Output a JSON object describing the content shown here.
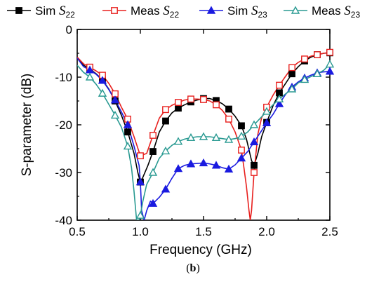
{
  "caption": {
    "open": "(",
    "letter": "b",
    "close": ")"
  },
  "chart_data": {
    "type": "line",
    "title": "",
    "xlabel": "Frequency (GHz)",
    "ylabel": "S-parameter (dB)",
    "xlim": [
      0.5,
      2.5
    ],
    "ylim": [
      -40,
      0
    ],
    "xticks": [
      "0.5",
      "1.0",
      "1.5",
      "2.0",
      "2.5"
    ],
    "yticks": [
      "0",
      "-10",
      "-20",
      "-30",
      "-40"
    ],
    "grid": false,
    "legend_position": "top",
    "series": [
      {
        "name": "Sim S22",
        "label": "Sim",
        "symbol": "S",
        "subscript": "22",
        "color": "#000000",
        "marker": "square-filled",
        "x": [
          0.5,
          0.55,
          0.6,
          0.65,
          0.7,
          0.75,
          0.8,
          0.85,
          0.9,
          0.95,
          0.98,
          1.0,
          1.02,
          1.06,
          1.1,
          1.15,
          1.2,
          1.25,
          1.3,
          1.35,
          1.4,
          1.45,
          1.5,
          1.55,
          1.6,
          1.65,
          1.7,
          1.75,
          1.8,
          1.84,
          1.88,
          1.9,
          1.93,
          1.96,
          2.0,
          2.05,
          2.1,
          2.15,
          2.2,
          2.25,
          2.3,
          2.35,
          2.4,
          2.45,
          2.5
        ],
        "y": [
          -6,
          -7.5,
          -8.3,
          -9.3,
          -10.6,
          -12.5,
          -15,
          -18,
          -21.5,
          -26,
          -30,
          -32,
          -31,
          -28.5,
          -25.6,
          -21.5,
          -19.2,
          -17.5,
          -16.5,
          -15.8,
          -15.2,
          -14.8,
          -14.5,
          -14.5,
          -14.9,
          -15.6,
          -16.7,
          -18.2,
          -20.2,
          -23,
          -27.5,
          -28.5,
          -26,
          -22.5,
          -19.5,
          -16,
          -13.3,
          -11.3,
          -9.3,
          -7.8,
          -6.6,
          -5.8,
          -5.3,
          -5.0,
          -4.9
        ],
        "marker_x": [
          0.6,
          0.7,
          0.8,
          0.9,
          1.0,
          1.1,
          1.2,
          1.3,
          1.4,
          1.5,
          1.6,
          1.7,
          1.8,
          1.9,
          2.0,
          2.1,
          2.2,
          2.3,
          2.4,
          2.5
        ]
      },
      {
        "name": "Meas S22",
        "label": "Meas",
        "symbol": "S",
        "subscript": "22",
        "color": "#e8201e",
        "marker": "square-open",
        "x": [
          0.5,
          0.55,
          0.6,
          0.65,
          0.7,
          0.75,
          0.8,
          0.85,
          0.9,
          0.95,
          1.0,
          1.05,
          1.1,
          1.15,
          1.2,
          1.25,
          1.3,
          1.35,
          1.4,
          1.45,
          1.5,
          1.55,
          1.6,
          1.65,
          1.7,
          1.75,
          1.8,
          1.82,
          1.84,
          1.86,
          1.87,
          1.88,
          1.9,
          1.93,
          1.96,
          2.0,
          2.05,
          2.1,
          2.15,
          2.2,
          2.25,
          2.3,
          2.35,
          2.4,
          2.45,
          2.5
        ],
        "y": [
          -5.8,
          -7.2,
          -7.9,
          -8.7,
          -9.6,
          -11.3,
          -13.5,
          -16.3,
          -18.8,
          -22.5,
          -26.5,
          -26,
          -22.2,
          -18.6,
          -16.8,
          -15.9,
          -15.3,
          -14.8,
          -14.6,
          -14.6,
          -14.7,
          -15.0,
          -15.8,
          -17.0,
          -18.8,
          -21.5,
          -25.3,
          -29,
          -33,
          -38,
          -40,
          -38,
          -30,
          -22,
          -18.5,
          -16.3,
          -13.8,
          -11.7,
          -9.8,
          -8.0,
          -6.9,
          -6.2,
          -5.6,
          -5.3,
          -5.0,
          -4.8
        ],
        "marker_x": [
          0.6,
          0.7,
          0.8,
          0.9,
          1.0,
          1.1,
          1.2,
          1.3,
          1.4,
          1.5,
          1.6,
          1.7,
          1.8,
          1.9,
          2.0,
          2.1,
          2.2,
          2.3,
          2.4,
          2.5
        ]
      },
      {
        "name": "Sim S23",
        "label": "Sim",
        "symbol": "S",
        "subscript": "23",
        "color": "#1a1ae0",
        "marker": "triangle-filled",
        "x": [
          0.5,
          0.55,
          0.6,
          0.65,
          0.7,
          0.75,
          0.8,
          0.85,
          0.9,
          0.95,
          0.99,
          1.0,
          1.01,
          1.03,
          1.05,
          1.08,
          1.1,
          1.15,
          1.2,
          1.25,
          1.3,
          1.35,
          1.4,
          1.45,
          1.5,
          1.55,
          1.6,
          1.65,
          1.7,
          1.75,
          1.8,
          1.85,
          1.9,
          1.95,
          2.0,
          2.05,
          2.1,
          2.15,
          2.2,
          2.25,
          2.3,
          2.35,
          2.4,
          2.45,
          2.5
        ],
        "y": [
          -6,
          -7.8,
          -8.5,
          -9.4,
          -10.7,
          -12.6,
          -14.8,
          -17.3,
          -20.0,
          -24.5,
          -28.5,
          -32,
          -38,
          -40,
          -38,
          -36,
          -36.5,
          -35.2,
          -33.5,
          -31.2,
          -29.2,
          -28.5,
          -28.2,
          -28.1,
          -28.0,
          -28.2,
          -28.5,
          -29.0,
          -29.3,
          -28.4,
          -27.0,
          -25.6,
          -23.6,
          -21.6,
          -19.6,
          -17.8,
          -15.6,
          -13.6,
          -12.1,
          -11.0,
          -10.2,
          -9.6,
          -9.1,
          -8.9,
          -8.8
        ],
        "marker_x": [
          0.6,
          0.7,
          0.8,
          0.9,
          1.0,
          1.1,
          1.2,
          1.3,
          1.4,
          1.5,
          1.6,
          1.7,
          1.8,
          1.9,
          2.0,
          2.1,
          2.2,
          2.3,
          2.4,
          2.5
        ]
      },
      {
        "name": "Meas S23",
        "label": "Meas",
        "symbol": "S",
        "subscript": "23",
        "color": "#2a9a92",
        "marker": "triangle-open",
        "x": [
          0.5,
          0.55,
          0.6,
          0.65,
          0.7,
          0.75,
          0.8,
          0.85,
          0.9,
          0.93,
          0.95,
          0.97,
          0.99,
          1.0,
          1.02,
          1.05,
          1.1,
          1.15,
          1.2,
          1.25,
          1.3,
          1.35,
          1.4,
          1.45,
          1.5,
          1.55,
          1.6,
          1.65,
          1.7,
          1.75,
          1.8,
          1.85,
          1.9,
          1.95,
          2.0,
          2.05,
          2.1,
          2.15,
          2.2,
          2.25,
          2.3,
          2.35,
          2.4,
          2.45,
          2.5
        ],
        "y": [
          -7.5,
          -9.0,
          -10.0,
          -11.5,
          -13.4,
          -15.7,
          -18.0,
          -20.5,
          -24.5,
          -29,
          -34,
          -40,
          -40,
          -39,
          -36,
          -32.5,
          -30.0,
          -27.0,
          -25.5,
          -24.3,
          -23.5,
          -23.0,
          -22.7,
          -22.5,
          -22.5,
          -22.5,
          -22.7,
          -22.9,
          -23.1,
          -22.9,
          -22.4,
          -21.5,
          -20.0,
          -18.6,
          -17.2,
          -15.8,
          -14.6,
          -13.5,
          -12.5,
          -11.2,
          -10.5,
          -9.9,
          -9.3,
          -8.6,
          -7.3
        ],
        "marker_x": [
          0.6,
          0.7,
          0.8,
          0.9,
          1.0,
          1.1,
          1.2,
          1.3,
          1.4,
          1.5,
          1.6,
          1.7,
          1.8,
          1.9,
          2.0,
          2.1,
          2.2,
          2.3,
          2.4,
          2.5
        ]
      }
    ]
  }
}
